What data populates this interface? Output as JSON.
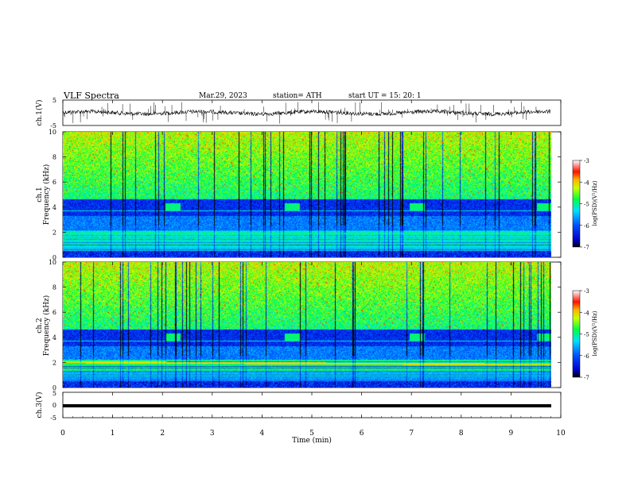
{
  "header": {
    "title": "VLF  Spectra",
    "date": "Mar.29, 2023",
    "station": "station= ATH",
    "start": "start  UT  =    15: 20: 1"
  },
  "chart_data": [
    {
      "type": "line",
      "title": "",
      "ylabel": "ch.1(V)",
      "ylim": [
        -5,
        5
      ],
      "yticks": [
        "5",
        "-5"
      ],
      "xlim": [
        0,
        10
      ],
      "description_level": 0.2,
      "color": "#000000"
    },
    {
      "type": "heatmap",
      "ylabel": [
        "ch.1",
        "Frequency  (kHz)"
      ],
      "ylim": [
        0,
        10
      ],
      "yticks": [
        "0",
        "2",
        "4",
        "6",
        "8",
        "10"
      ],
      "xlim": [
        0,
        10
      ],
      "data_extent_min": 9.8,
      "bursts_min": [
        {
          "start": 2.05,
          "end": 2.35,
          "freq_khz": [
            3.7,
            4.3
          ]
        },
        {
          "start": 4.45,
          "end": 4.75,
          "freq_khz": [
            3.7,
            4.3
          ]
        },
        {
          "start": 6.95,
          "end": 7.25,
          "freq_khz": [
            3.7,
            4.3
          ]
        },
        {
          "start": 9.5,
          "end": 9.8,
          "freq_khz": [
            3.7,
            4.3
          ]
        }
      ],
      "colorbar": {
        "label": "log(PSD)(V²/Hz)",
        "ticks": [
          "-3",
          "-4",
          "-5",
          "-6",
          "-7"
        ],
        "range": [
          -7,
          -3
        ],
        "colors": [
          "#000000",
          "#0000ff",
          "#00ffff",
          "#00ff00",
          "#ffff00",
          "#ff0000",
          "#ffffff"
        ]
      }
    },
    {
      "type": "heatmap",
      "ylabel": [
        "ch.2",
        "Frequency  (kHz)"
      ],
      "ylim": [
        0,
        10
      ],
      "yticks": [
        "0",
        "2",
        "4",
        "6",
        "8",
        "10"
      ],
      "xlim": [
        0,
        10
      ],
      "data_extent_min": 9.8,
      "bursts_min": [
        {
          "start": 2.05,
          "end": 2.35,
          "freq_khz": [
            3.7,
            4.3
          ]
        },
        {
          "start": 4.45,
          "end": 4.75,
          "freq_khz": [
            3.7,
            4.3
          ]
        },
        {
          "start": 6.95,
          "end": 7.25,
          "freq_khz": [
            3.7,
            4.3
          ]
        },
        {
          "start": 9.5,
          "end": 9.8,
          "freq_khz": [
            3.7,
            4.3
          ]
        }
      ],
      "colorbar": {
        "label": "log(PSD)(V²/Hz)",
        "ticks": [
          "-3",
          "-4",
          "-5",
          "-6",
          "-7"
        ],
        "range": [
          -7,
          -3
        ],
        "colors": [
          "#000000",
          "#0000ff",
          "#00ffff",
          "#00ff00",
          "#ffff00",
          "#ff0000",
          "#ffffff"
        ]
      }
    },
    {
      "type": "line",
      "ylabel": "ch.3(V)",
      "ylim": [
        -5,
        5
      ],
      "yticks": [
        "5",
        "0",
        "-5"
      ],
      "xlim": [
        0,
        10
      ],
      "xticks": [
        "0",
        "1",
        "2",
        "3",
        "4",
        "5",
        "6",
        "7",
        "8",
        "9",
        "10"
      ],
      "xlabel": "Time  (min)",
      "level": 0
    }
  ]
}
